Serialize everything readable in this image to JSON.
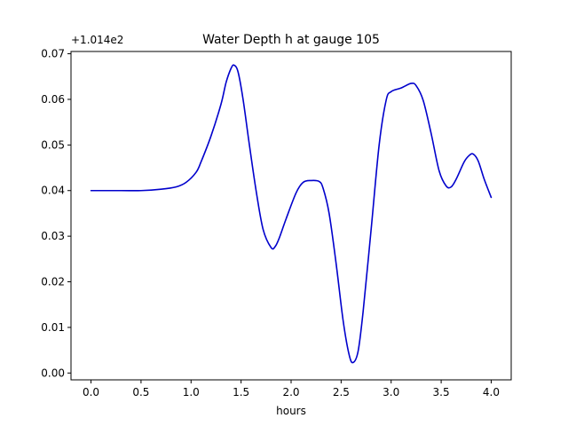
{
  "chart_data": {
    "type": "line",
    "title": "Water Depth h at gauge 105",
    "xlabel": "hours",
    "ylabel": "",
    "offset_label": "+1.014e2",
    "xlim": [
      -0.2,
      4.2
    ],
    "ylim": [
      -0.0015,
      0.0705
    ],
    "xticks": [
      0.0,
      0.5,
      1.0,
      1.5,
      2.0,
      2.5,
      3.0,
      3.5,
      4.0
    ],
    "xtick_labels": [
      "0.0",
      "0.5",
      "1.0",
      "1.5",
      "2.0",
      "2.5",
      "3.0",
      "3.5",
      "4.0"
    ],
    "yticks": [
      0.0,
      0.01,
      0.02,
      0.03,
      0.04,
      0.05,
      0.06,
      0.07
    ],
    "ytick_labels": [
      "0.00",
      "0.01",
      "0.02",
      "0.03",
      "0.04",
      "0.05",
      "0.06",
      "0.07"
    ],
    "grid": false,
    "legend": "none",
    "series": [
      {
        "color": "#0000cc",
        "x": [
          0.0,
          0.3,
          0.5,
          0.7,
          0.85,
          0.95,
          1.05,
          1.1,
          1.2,
          1.3,
          1.35,
          1.4,
          1.43,
          1.47,
          1.52,
          1.58,
          1.65,
          1.72,
          1.8,
          1.84,
          1.88,
          1.95,
          2.05,
          2.12,
          2.2,
          2.28,
          2.32,
          2.38,
          2.45,
          2.52,
          2.58,
          2.62,
          2.67,
          2.72,
          2.8,
          2.88,
          2.95,
          3.0,
          3.1,
          3.2,
          3.25,
          3.32,
          3.4,
          3.48,
          3.55,
          3.6,
          3.65,
          3.73,
          3.78,
          3.82,
          3.87,
          3.93,
          4.0
        ],
        "y": [
          0.04,
          0.04,
          0.04,
          0.0403,
          0.0408,
          0.0418,
          0.044,
          0.0463,
          0.052,
          0.059,
          0.0637,
          0.0668,
          0.0675,
          0.066,
          0.06,
          0.0505,
          0.04,
          0.0315,
          0.0275,
          0.0277,
          0.0295,
          0.0338,
          0.0395,
          0.0418,
          0.0422,
          0.042,
          0.0405,
          0.035,
          0.024,
          0.0115,
          0.004,
          0.0023,
          0.0048,
          0.0135,
          0.0315,
          0.05,
          0.0598,
          0.0617,
          0.0625,
          0.0635,
          0.063,
          0.0598,
          0.0525,
          0.0443,
          0.041,
          0.0408,
          0.0425,
          0.0463,
          0.0477,
          0.048,
          0.0465,
          0.0425,
          0.0385
        ]
      }
    ]
  }
}
